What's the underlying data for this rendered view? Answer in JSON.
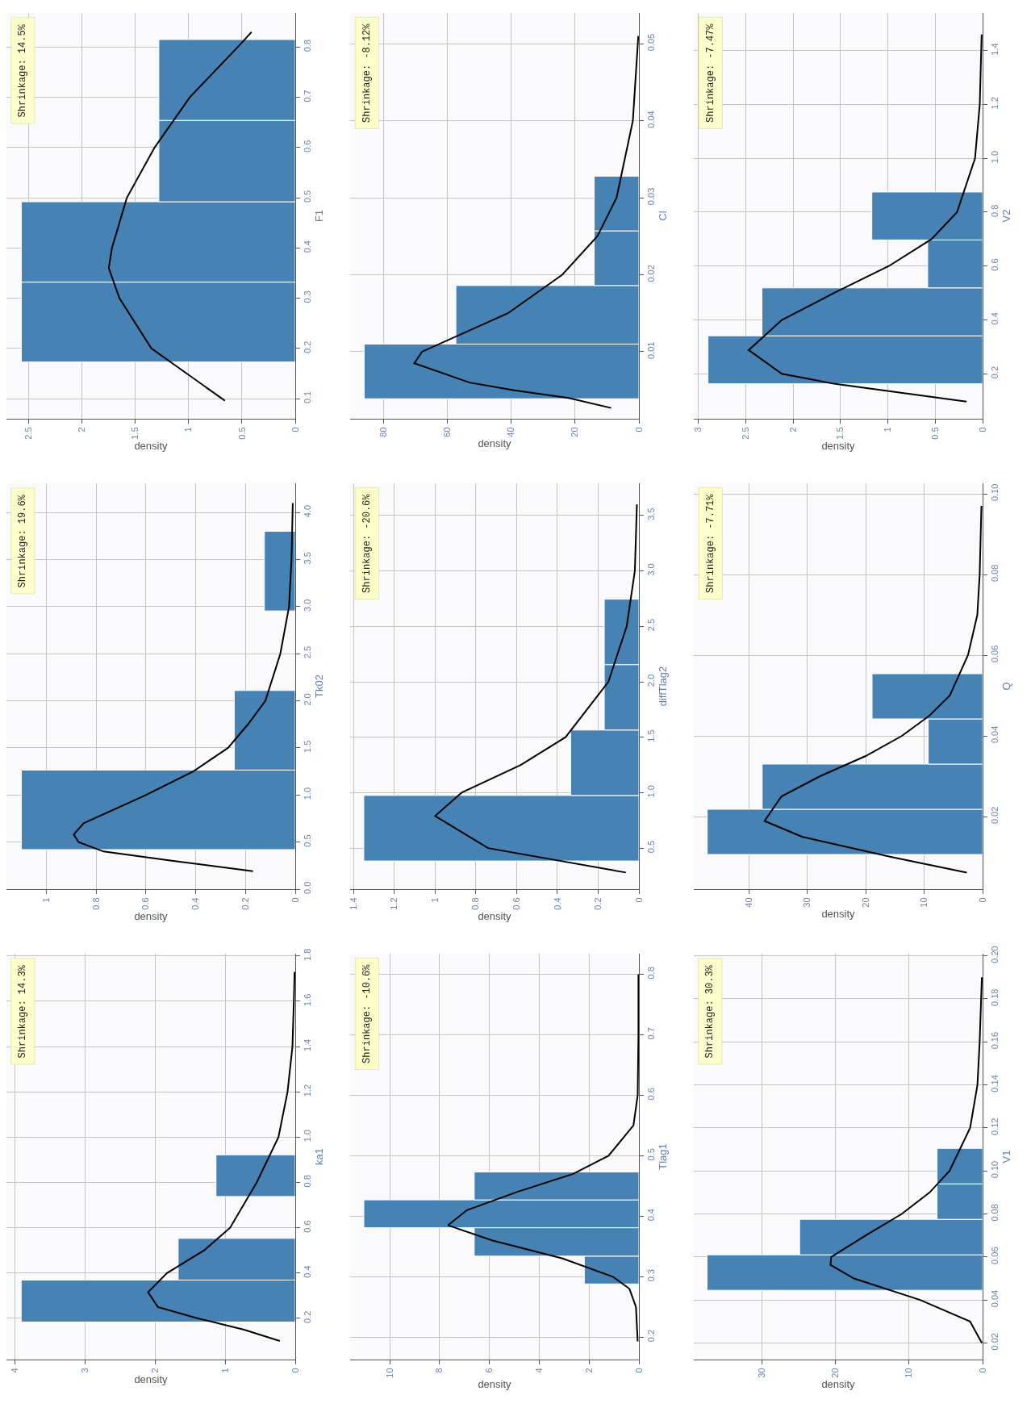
{
  "chart_data": [
    {
      "type": "histogram",
      "orientation": "horizontal",
      "xlabel": "density",
      "ylabel": "ka1",
      "annotations": [
        "Shrinkage: 14.3%"
      ],
      "bins": [
        0.184,
        0.369,
        0.553,
        0.738,
        0.922
      ],
      "values": [
        3.91,
        1.67,
        0,
        1.13
      ],
      "color": "#4682b4",
      "series": [
        {
          "type": "line",
          "color": "#000000",
          "x": [
            0.1,
            0.15,
            0.2,
            0.25,
            0.315,
            0.4,
            0.5,
            0.6,
            0.8,
            1.0,
            1.2,
            1.4,
            1.6,
            1.73
          ],
          "values": [
            0.22,
            0.73,
            1.39,
            1.96,
            2.1,
            1.83,
            1.3,
            0.93,
            0.55,
            0.24,
            0.11,
            0.04,
            0.02,
            0.01
          ]
        }
      ],
      "xlim": [
        4.12,
        0
      ],
      "ylim": [
        0.018,
        1.81
      ],
      "xticks": [
        0,
        1,
        2,
        3,
        4
      ],
      "yticks": [
        0.2,
        0.4,
        0.6,
        0.8,
        {
          "value": 1,
          "label": "1.0"
        },
        1.2,
        1.4,
        1.6,
        1.8
      ],
      "grid": true
    },
    {
      "type": "histogram",
      "orientation": "horizontal",
      "xlabel": "density",
      "ylabel": "Tk02",
      "annotations": [
        "Shrinkage: 19.6%"
      ],
      "bins": [
        0.42,
        1.265,
        2.11,
        2.955,
        3.8
      ],
      "values": [
        1.1,
        0.245,
        0,
        0.124
      ],
      "color": "#4682b4",
      "series": [
        {
          "type": "line",
          "color": "#000000",
          "x": [
            0.19,
            0.3,
            0.4,
            0.5,
            0.58,
            0.7,
            1.0,
            1.25,
            1.5,
            1.75,
            2.0,
            2.5,
            3.0,
            3.5,
            4.1
          ],
          "values": [
            0.17,
            0.49,
            0.77,
            0.87,
            0.89,
            0.85,
            0.6,
            0.41,
            0.27,
            0.19,
            0.12,
            0.06,
            0.025,
            0.015,
            0.01
          ]
        }
      ],
      "xlim": [
        1.16,
        0
      ],
      "ylim": [
        0,
        4.31
      ],
      "xticks": [
        0,
        0.2,
        0.4,
        0.6,
        0.8,
        1
      ],
      "yticks": [
        {
          "value": 0,
          "label": "0.0"
        },
        0.5,
        {
          "value": 1,
          "label": "1.0"
        },
        1.5,
        {
          "value": 2,
          "label": "2.0"
        },
        2.5,
        {
          "value": 3,
          "label": "3.0"
        },
        3.5,
        {
          "value": 4,
          "label": "4.0"
        }
      ],
      "grid": true
    },
    {
      "type": "histogram",
      "orientation": "horizontal",
      "xlabel": "density",
      "ylabel": "F1",
      "annotations": [
        "Shrinkage: 14.5%"
      ],
      "bins": [
        0.173,
        0.332,
        0.492,
        0.654,
        0.815
      ],
      "values": [
        2.57,
        2.57,
        1.28,
        1.28
      ],
      "color": "#4682b4",
      "series": [
        {
          "type": "line",
          "color": "#000000",
          "x": [
            0.096,
            0.2,
            0.3,
            0.36,
            0.4,
            0.5,
            0.6,
            0.7,
            0.8,
            0.83
          ],
          "values": [
            0.66,
            1.35,
            1.65,
            1.75,
            1.72,
            1.58,
            1.32,
            0.99,
            0.54,
            0.41
          ]
        }
      ],
      "xlim": [
        2.71,
        0
      ],
      "ylim": [
        0.06,
        0.868
      ],
      "xticks": [
        0,
        0.5,
        1,
        1.5,
        2,
        2.5
      ],
      "yticks": [
        0.1,
        0.2,
        0.3,
        0.4,
        0.5,
        0.6,
        0.7,
        0.8
      ],
      "grid": true
    },
    {
      "type": "histogram",
      "orientation": "horizontal",
      "xlabel": "density",
      "ylabel": "Tlag1",
      "annotations": [
        "Shrinkage: -10.6%"
      ],
      "bins": [
        0.288,
        0.334,
        0.381,
        0.427,
        0.473
      ],
      "values": [
        2.19,
        6.61,
        11.04,
        6.61
      ],
      "color": "#4682b4",
      "series": [
        {
          "type": "line",
          "color": "#000000",
          "x": [
            0.193,
            0.25,
            0.28,
            0.3,
            0.33,
            0.36,
            0.385,
            0.41,
            0.44,
            0.47,
            0.5,
            0.55,
            0.6,
            0.7,
            0.8
          ],
          "values": [
            0.05,
            0.12,
            0.38,
            1.05,
            3.06,
            5.9,
            7.66,
            6.9,
            4.9,
            2.64,
            1.22,
            0.22,
            0.05,
            0.02,
            0.02
          ]
        }
      ],
      "xlim": [
        11.59,
        0
      ],
      "ylim": [
        0.163,
        0.834
      ],
      "xticks": [
        0,
        2,
        4,
        6,
        8,
        10
      ],
      "yticks": [
        0.2,
        0.3,
        0.4,
        0.5,
        0.6,
        0.7,
        0.8
      ],
      "grid": true
    },
    {
      "type": "histogram",
      "orientation": "horizontal",
      "xlabel": "density",
      "ylabel": "diffTlag2",
      "annotations": [
        "Shrinkage: -20.6%"
      ],
      "bins": [
        0.384,
        0.975,
        1.565,
        2.155,
        2.745
      ],
      "values": [
        1.35,
        0.335,
        0.17,
        0.17
      ],
      "color": "#4682b4",
      "series": [
        {
          "type": "line",
          "color": "#000000",
          "x": [
            0.28,
            0.5,
            0.79,
            1.0,
            1.25,
            1.5,
            2.0,
            2.5,
            3.0,
            3.6
          ],
          "values": [
            0.064,
            0.74,
            1.0,
            0.87,
            0.58,
            0.36,
            0.15,
            0.06,
            0.02,
            0.01
          ]
        }
      ],
      "xlim": [
        1.417,
        0
      ],
      "ylim": [
        0.13,
        3.79
      ],
      "xticks": [
        0,
        0.2,
        0.4,
        0.6,
        0.8,
        1,
        1.2,
        1.4
      ],
      "yticks": [
        0.5,
        {
          "value": 1,
          "label": "1.0"
        },
        1.5,
        {
          "value": 2,
          "label": "2.0"
        },
        2.5,
        {
          "value": 3,
          "label": "3.0"
        },
        3.5
      ],
      "grid": true
    },
    {
      "type": "histogram",
      "orientation": "horizontal",
      "xlabel": "density",
      "ylabel": "Cl",
      "annotations": [
        "Shrinkage: -8.12%"
      ],
      "bins": [
        0.0039,
        0.011,
        0.0186,
        0.0257,
        0.0328
      ],
      "values": [
        86,
        57.3,
        14,
        14
      ],
      "color": "#4682b4",
      "series": [
        {
          "type": "line",
          "color": "#000000",
          "x": [
            0.0027,
            0.004,
            0.005,
            0.006,
            0.0085,
            0.01,
            0.015,
            0.02,
            0.025,
            0.03,
            0.04,
            0.051
          ],
          "values": [
            8.7,
            22,
            39,
            53,
            70.3,
            67.9,
            41,
            24,
            13,
            7,
            1.9,
            0.2
          ]
        }
      ],
      "xlim": [
        90.4,
        0
      ],
      "ylim": [
        0.0013,
        0.054
      ],
      "xticks": [
        0,
        20,
        40,
        60,
        80
      ],
      "yticks": [
        0.01,
        0.02,
        0.03,
        0.04,
        0.05
      ],
      "grid": true
    },
    {
      "type": "histogram",
      "orientation": "horizontal",
      "xlabel": "density",
      "ylabel": "V1",
      "annotations": [
        "Shrinkage: 30.3%"
      ],
      "bins": [
        0.0445,
        0.061,
        0.0775,
        0.094,
        0.1105
      ],
      "values": [
        37.5,
        24.9,
        6.2,
        6.2
      ],
      "color": "#4682b4",
      "series": [
        {
          "type": "line",
          "color": "#000000",
          "x": [
            0.02,
            0.03,
            0.04,
            0.05,
            0.0563,
            0.06,
            0.07,
            0.08,
            0.09,
            0.1,
            0.12,
            0.14,
            0.16,
            0.19
          ],
          "values": [
            0.1,
            1.7,
            8.5,
            17.5,
            20.7,
            20.6,
            15.9,
            11,
            7.2,
            4.5,
            1.7,
            0.7,
            0.4,
            0.1
          ]
        }
      ],
      "xlim": [
        39.3,
        0
      ],
      "ylim": [
        0.0123,
        0.201
      ],
      "xticks": [
        0,
        10,
        20,
        30
      ],
      "yticks": [
        0.02,
        0.04,
        0.06,
        0.08,
        {
          "value": 0.1,
          "label": "0.10"
        },
        0.12,
        0.14,
        0.16,
        0.18,
        {
          "value": 0.2,
          "label": "0.20"
        }
      ],
      "grid": true
    },
    {
      "type": "histogram",
      "orientation": "horizontal",
      "xlabel": "density",
      "ylabel": "Q",
      "annotations": [
        "Shrinkage: -7.71%"
      ],
      "bins": [
        0.0106,
        0.0218,
        0.033,
        0.0442,
        0.0554
      ],
      "values": [
        47.1,
        37.7,
        9.3,
        18.9
      ],
      "color": "#4682b4",
      "series": [
        {
          "type": "line",
          "color": "#000000",
          "x": [
            0.0061,
            0.01,
            0.015,
            0.0189,
            0.025,
            0.03,
            0.035,
            0.04,
            0.045,
            0.05,
            0.06,
            0.07,
            0.08,
            0.097
          ],
          "values": [
            2.7,
            15.7,
            30.9,
            37.3,
            34.4,
            27.8,
            20,
            13.8,
            9.1,
            5.6,
            2.5,
            0.9,
            0.5,
            0.2
          ]
        }
      ],
      "xlim": [
        49.4,
        0
      ],
      "ylim": [
        0.002,
        0.1026
      ],
      "xticks": [
        0,
        10,
        20,
        30,
        40
      ],
      "yticks": [
        0.02,
        0.04,
        0.06,
        0.08,
        {
          "value": 0.1,
          "label": "0.10"
        }
      ],
      "grid": true
    },
    {
      "type": "histogram",
      "orientation": "horizontal",
      "xlabel": "density",
      "ylabel": "V2",
      "annotations": [
        "Shrinkage: -7.47%"
      ],
      "bins": [
        0.163,
        0.341,
        0.519,
        0.697,
        0.875
      ],
      "values": [
        2.9,
        2.33,
        0.58,
        1.17
      ],
      "color": "#4682b4",
      "series": [
        {
          "type": "line",
          "color": "#000000",
          "x": [
            0.097,
            0.163,
            0.2,
            0.288,
            0.4,
            0.5,
            0.6,
            0.7,
            0.8,
            1.0,
            1.2,
            1.46
          ],
          "values": [
            0.17,
            1.57,
            2.12,
            2.47,
            2.12,
            1.57,
            0.99,
            0.54,
            0.27,
            0.08,
            0.03,
            0.01
          ]
        }
      ],
      "xlim": [
        3.05,
        0
      ],
      "ylim": [
        0.033,
        1.54
      ],
      "xticks": [
        0,
        0.5,
        1,
        1.5,
        2,
        2.5,
        3
      ],
      "yticks": [
        0.2,
        0.4,
        0.6,
        0.8,
        {
          "value": 1,
          "label": "1.0"
        },
        1.2,
        1.4
      ],
      "grid": true
    }
  ]
}
